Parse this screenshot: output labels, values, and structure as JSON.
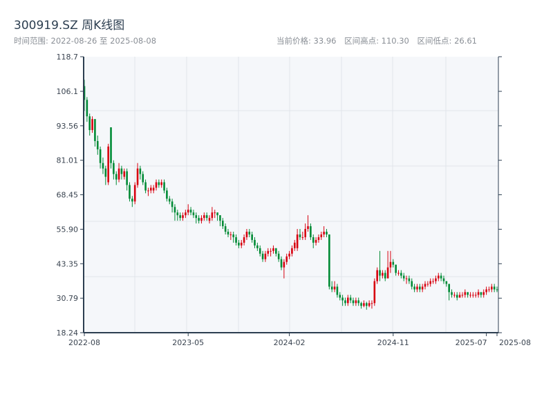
{
  "header": {
    "title": "300919.SZ 周K线图",
    "range_label": "时间范围: 2022-08-26 至 2025-08-08",
    "current_price": "当前价格: 33.96",
    "range_high": "区间高点: 110.30",
    "range_low": "区间低点: 26.61"
  },
  "colors": {
    "up": "#d7000f",
    "down": "#008a35",
    "plot_bg": "#f5f7fa",
    "grid": "#e1e4ea",
    "axis": "#2c3e50"
  },
  "chart_data": {
    "type": "candlestick",
    "title": "300919.SZ 周K线图",
    "start_date": "2022-08-26",
    "end_date": "2025-08-08",
    "ylim": [
      18.24,
      118.7
    ],
    "yticks": [
      "18.24",
      "30.79",
      "43.35",
      "55.90",
      "68.45",
      "81.01",
      "93.56",
      "106.1",
      "118.7"
    ],
    "xticks": [
      {
        "label": "2022-08",
        "week": 0
      },
      {
        "label": "2023-05",
        "week": 39
      },
      {
        "label": "2024-02",
        "week": 77
      },
      {
        "label": "2024-11",
        "week": 116
      },
      {
        "label": "2025-07",
        "week": 151
      },
      {
        "label": "2025-08",
        "week": 155
      }
    ],
    "ohlc_fields": [
      "open",
      "high",
      "low",
      "close"
    ],
    "ohlc": [
      [
        108,
        110.3,
        99,
        103
      ],
      [
        103,
        104,
        95,
        97
      ],
      [
        97,
        98,
        90,
        92
      ],
      [
        92,
        97,
        91,
        96
      ],
      [
        96,
        96,
        86,
        88
      ],
      [
        88,
        90,
        83,
        85
      ],
      [
        85,
        86,
        78,
        80
      ],
      [
        80,
        82,
        76,
        78
      ],
      [
        78,
        79,
        72,
        75
      ],
      [
        73,
        87,
        72,
        86
      ],
      [
        93,
        93,
        78,
        80
      ],
      [
        80,
        81,
        74,
        76
      ],
      [
        76,
        77,
        72,
        74
      ],
      [
        74,
        80,
        73,
        78
      ],
      [
        78,
        79,
        74,
        76
      ],
      [
        75,
        78,
        74,
        77
      ],
      [
        77,
        78,
        70,
        72
      ],
      [
        72,
        73,
        66,
        67
      ],
      [
        67,
        68,
        64,
        66
      ],
      [
        66,
        73,
        65,
        72
      ],
      [
        72,
        80,
        71,
        78
      ],
      [
        78,
        79,
        74,
        76
      ],
      [
        76,
        77,
        72,
        73
      ],
      [
        73,
        74,
        69,
        70
      ],
      [
        70,
        71,
        68,
        70
      ],
      [
        70,
        72,
        69,
        71
      ],
      [
        70,
        72,
        69,
        71
      ],
      [
        71,
        74,
        70,
        73
      ],
      [
        73,
        74,
        71,
        72
      ],
      [
        72,
        74,
        71,
        73
      ],
      [
        73,
        74,
        69,
        70
      ],
      [
        70,
        71,
        66,
        67
      ],
      [
        67,
        68,
        65,
        66
      ],
      [
        66,
        67,
        62,
        64
      ],
      [
        64,
        65,
        59,
        62
      ],
      [
        62,
        63,
        59,
        61
      ],
      [
        61,
        62,
        59,
        60
      ],
      [
        60,
        62,
        59,
        61
      ],
      [
        61,
        63,
        60,
        62
      ],
      [
        62,
        65,
        61,
        63
      ],
      [
        63,
        64,
        61,
        62
      ],
      [
        62,
        63,
        60,
        61
      ],
      [
        61,
        62,
        58,
        60
      ],
      [
        60,
        61,
        58,
        59
      ],
      [
        59,
        61,
        58,
        60
      ],
      [
        60,
        62,
        59,
        61
      ],
      [
        61,
        62,
        59,
        60
      ],
      [
        59,
        61,
        58,
        60
      ],
      [
        60,
        64,
        59,
        62
      ],
      [
        62,
        63,
        60,
        62
      ],
      [
        62,
        62,
        59,
        61
      ],
      [
        61,
        61,
        57,
        59
      ],
      [
        59,
        60,
        56,
        57
      ],
      [
        57,
        58,
        54,
        55
      ],
      [
        55,
        56,
        53,
        54
      ],
      [
        54,
        55,
        52,
        54
      ],
      [
        54,
        55,
        51,
        53
      ],
      [
        53,
        54,
        50,
        51
      ],
      [
        51,
        52,
        49,
        50
      ],
      [
        50,
        52,
        49,
        51
      ],
      [
        51,
        54,
        50,
        53
      ],
      [
        53,
        56,
        52,
        55
      ],
      [
        55,
        56,
        53,
        54
      ],
      [
        54,
        55,
        51,
        52
      ],
      [
        52,
        53,
        49,
        50
      ],
      [
        50,
        51,
        48,
        49
      ],
      [
        49,
        50,
        46,
        47
      ],
      [
        47,
        48,
        44,
        45
      ],
      [
        45,
        48,
        44,
        47
      ],
      [
        47,
        49,
        46,
        48
      ],
      [
        48,
        49,
        46,
        48
      ],
      [
        48,
        50,
        47,
        49
      ],
      [
        49,
        49,
        46,
        47
      ],
      [
        47,
        48,
        44,
        45
      ],
      [
        45,
        46,
        41,
        42
      ],
      [
        42,
        45,
        38,
        44
      ],
      [
        44,
        47,
        43,
        46
      ],
      [
        46,
        48,
        45,
        47
      ],
      [
        47,
        50,
        46,
        49
      ],
      [
        49,
        52,
        48,
        51
      ],
      [
        49,
        56,
        48,
        54
      ],
      [
        54,
        56,
        52,
        53
      ],
      [
        53,
        55,
        52,
        53
      ],
      [
        53,
        58,
        52,
        56
      ],
      [
        56,
        61,
        55,
        57
      ],
      [
        57,
        58,
        52,
        53
      ],
      [
        53,
        54,
        49,
        51
      ],
      [
        51,
        53,
        50,
        52
      ],
      [
        52,
        54,
        51,
        53
      ],
      [
        53,
        55,
        52,
        54
      ],
      [
        54,
        57,
        53,
        55
      ],
      [
        55,
        56,
        53,
        54
      ],
      [
        54,
        54,
        34,
        35
      ],
      [
        35,
        37,
        33,
        34
      ],
      [
        34,
        37,
        33,
        35
      ],
      [
        35,
        36,
        31,
        32
      ],
      [
        32,
        33,
        30,
        31
      ],
      [
        31,
        32,
        28,
        30
      ],
      [
        30,
        31,
        28,
        29
      ],
      [
        29,
        32,
        28,
        31
      ],
      [
        31,
        32,
        29,
        30
      ],
      [
        30,
        31,
        28,
        29
      ],
      [
        29,
        31,
        28,
        30
      ],
      [
        30,
        31,
        28,
        29
      ],
      [
        29,
        29.5,
        27,
        28
      ],
      [
        28,
        30,
        27.5,
        29
      ],
      [
        29,
        29.5,
        26.61,
        28
      ],
      [
        28,
        30,
        27.5,
        29
      ],
      [
        29,
        30,
        27,
        29
      ],
      [
        29,
        38,
        28,
        37
      ],
      [
        37,
        42,
        36,
        41
      ],
      [
        41,
        48,
        37,
        39
      ],
      [
        39,
        41,
        38,
        40
      ],
      [
        40,
        41,
        37,
        38
      ],
      [
        38,
        48,
        38,
        42
      ],
      [
        42,
        48,
        40,
        44
      ],
      [
        44,
        45,
        42,
        43
      ],
      [
        43,
        43,
        39,
        40
      ],
      [
        40,
        41,
        39,
        40
      ],
      [
        40,
        41,
        38,
        39
      ],
      [
        39,
        40,
        37,
        38
      ],
      [
        38,
        39,
        36,
        38
      ],
      [
        38,
        39,
        36,
        37
      ],
      [
        37,
        38,
        34,
        35
      ],
      [
        35,
        36,
        33,
        34
      ],
      [
        34,
        36,
        33,
        35
      ],
      [
        35,
        36,
        33,
        34
      ],
      [
        34,
        36,
        33,
        35
      ],
      [
        35,
        37,
        34,
        36
      ],
      [
        36,
        37,
        35,
        36
      ],
      [
        36,
        38,
        35,
        37
      ],
      [
        37,
        38,
        36,
        37
      ],
      [
        37,
        39,
        36,
        38
      ],
      [
        38,
        40,
        37,
        39
      ],
      [
        39,
        40,
        37,
        38
      ],
      [
        38,
        39,
        36,
        37
      ],
      [
        37,
        37,
        35,
        36
      ],
      [
        36,
        36,
        30,
        33
      ],
      [
        33,
        34,
        31,
        32
      ],
      [
        32,
        33,
        31,
        32
      ],
      [
        32,
        33,
        30,
        31
      ],
      [
        31,
        33,
        31,
        32
      ],
      [
        32,
        33,
        31,
        32
      ],
      [
        32,
        34,
        31,
        33
      ],
      [
        33,
        33,
        31,
        32
      ],
      [
        32,
        33,
        31,
        32
      ],
      [
        32,
        33,
        31,
        32
      ],
      [
        32,
        33,
        31,
        32
      ],
      [
        32,
        34,
        31,
        33
      ],
      [
        33,
        33,
        31,
        32
      ],
      [
        32,
        34,
        31,
        33
      ],
      [
        33,
        35,
        32,
        34
      ],
      [
        34,
        35,
        33,
        34
      ],
      [
        34,
        36,
        33,
        35
      ],
      [
        35,
        36,
        33,
        34
      ],
      [
        34,
        35,
        33,
        33.96
      ]
    ]
  }
}
